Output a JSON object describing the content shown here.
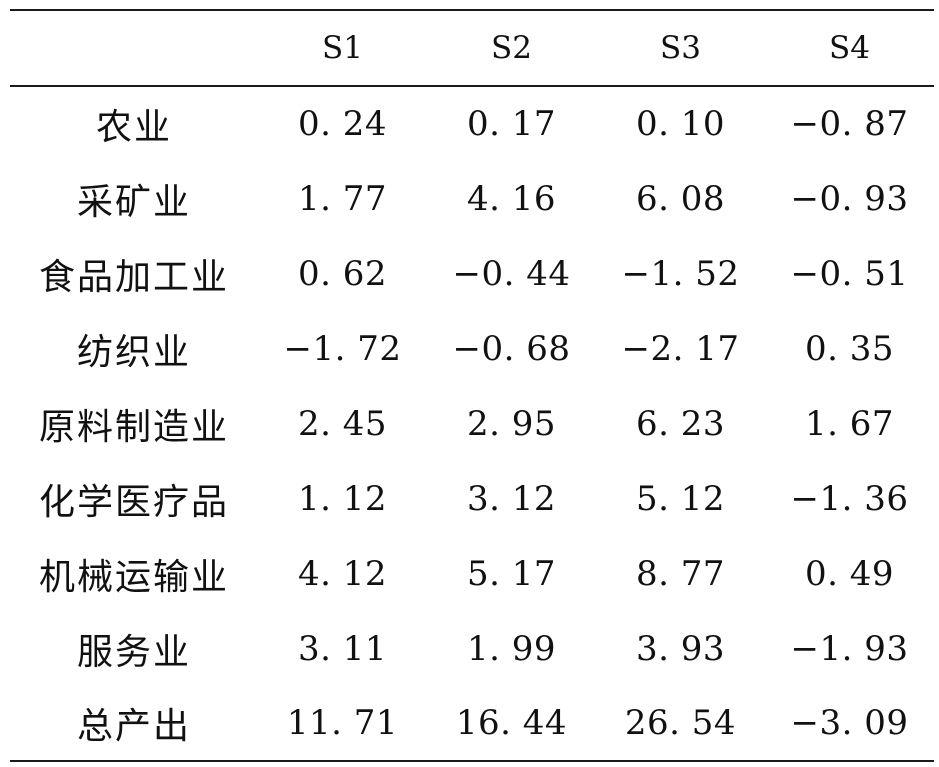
{
  "table": {
    "headers": [
      "",
      "S1",
      "S2",
      "S3",
      "S4"
    ],
    "rows": [
      {
        "label": "农业",
        "values": [
          "0. 24",
          "0. 17",
          "0. 10",
          "−0. 87"
        ]
      },
      {
        "label": "采矿业",
        "values": [
          "1. 77",
          "4. 16",
          "6. 08",
          "−0. 93"
        ]
      },
      {
        "label": "食品加工业",
        "values": [
          "0. 62",
          "−0. 44",
          "−1. 52",
          "−0. 51"
        ]
      },
      {
        "label": "纺织业",
        "values": [
          "−1. 72",
          "−0. 68",
          "−2. 17",
          "0. 35"
        ]
      },
      {
        "label": "原料制造业",
        "values": [
          "2. 45",
          "2. 95",
          "6. 23",
          "1. 67"
        ]
      },
      {
        "label": "化学医疗品",
        "values": [
          "1. 12",
          "3. 12",
          "5. 12",
          "−1. 36"
        ]
      },
      {
        "label": "机械运输业",
        "values": [
          "4. 12",
          "5. 17",
          "8. 77",
          "0. 49"
        ]
      },
      {
        "label": "服务业",
        "values": [
          "3. 11",
          "1. 99",
          "3. 93",
          "−1. 93"
        ]
      },
      {
        "label": "总产出",
        "values": [
          "11. 71",
          "16. 44",
          "26. 54",
          "−3. 09"
        ]
      }
    ]
  }
}
